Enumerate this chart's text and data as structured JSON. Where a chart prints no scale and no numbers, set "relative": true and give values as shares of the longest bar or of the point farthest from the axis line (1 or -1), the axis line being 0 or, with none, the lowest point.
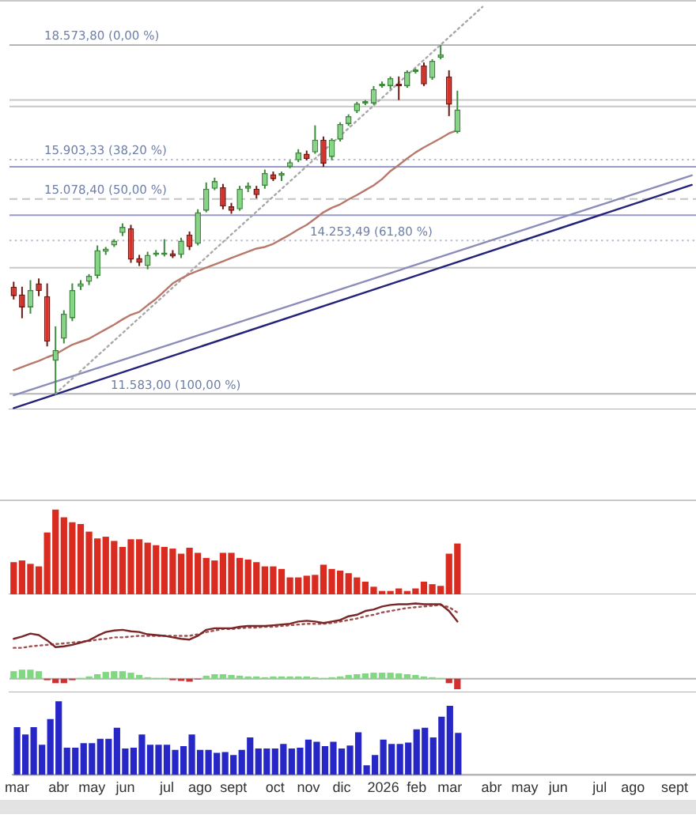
{
  "chart_data": [
    {
      "type": "candlestick",
      "categories": [
        null,
        null,
        null,
        null,
        null,
        null,
        null,
        null,
        null,
        null,
        null,
        null,
        null,
        null,
        null,
        null,
        null,
        null,
        null,
        null,
        null,
        null,
        null,
        null,
        null,
        null,
        null,
        null,
        null,
        null,
        null,
        null,
        null,
        null,
        null,
        null,
        null,
        null,
        null,
        null,
        null,
        null,
        null,
        null,
        null,
        null,
        null,
        null,
        null,
        null,
        null,
        null,
        null,
        null,
        null,
        null,
        null,
        null,
        null,
        null,
        null,
        null,
        null,
        null,
        null,
        null,
        null,
        null,
        null,
        null,
        null,
        null,
        null,
        null,
        null,
        null,
        null,
        null,
        null,
        null,
        null,
        null
      ],
      "ohlc": [
        [
          13390,
          13480,
          13160,
          13220
        ],
        [
          13250,
          13390,
          12830,
          13020
        ],
        [
          13020,
          13510,
          12910,
          13330
        ],
        [
          13450,
          13540,
          13220,
          13310
        ],
        [
          13220,
          13450,
          12350,
          12430
        ],
        [
          12110,
          12690,
          11583,
          12290
        ],
        [
          12480,
          12970,
          12400,
          12910
        ],
        [
          12830,
          13450,
          12780,
          13330
        ],
        [
          13390,
          13510,
          13330,
          13450
        ],
        [
          13480,
          13620,
          13420,
          13590
        ],
        [
          13590,
          14160,
          13540,
          14070
        ],
        [
          14040,
          14130,
          13980,
          14100
        ],
        [
          14160,
          14280,
          14130,
          14250
        ],
        [
          14400,
          14590,
          14340,
          14520
        ],
        [
          14490,
          14560,
          13830,
          13890
        ],
        [
          13920,
          13980,
          13770,
          13830
        ],
        [
          13770,
          14040,
          13710,
          13980
        ],
        [
          13980,
          14070,
          13950,
          14010
        ],
        [
          13980,
          14280,
          13950,
          14010
        ],
        [
          14010,
          14070,
          13920,
          13950
        ],
        [
          13980,
          14310,
          13920,
          14250
        ],
        [
          14370,
          14430,
          14070,
          14130
        ],
        [
          14190,
          14870,
          14160,
          14810
        ],
        [
          14840,
          15420,
          14810,
          15290
        ],
        [
          15290,
          15520,
          15260,
          15450
        ],
        [
          15320,
          15390,
          14870,
          14930
        ],
        [
          14930,
          15000,
          14780,
          14840
        ],
        [
          14870,
          15350,
          14840,
          15290
        ],
        [
          15290,
          15420,
          15220,
          15350
        ],
        [
          15290,
          15350,
          15090,
          15160
        ],
        [
          15350,
          15690,
          15290,
          15620
        ],
        [
          15590,
          15650,
          15450,
          15490
        ],
        [
          15560,
          15650,
          15450,
          15620
        ],
        [
          15750,
          15890,
          15720,
          15850
        ],
        [
          15890,
          16130,
          15850,
          16060
        ],
        [
          16030,
          16100,
          15890,
          15920
        ],
        [
          16060,
          16660,
          16030,
          16340
        ],
        [
          16340,
          16410,
          15750,
          15820
        ],
        [
          15960,
          16370,
          15890,
          16340
        ],
        [
          16340,
          16730,
          16300,
          16690
        ],
        [
          16690,
          16910,
          16650,
          16870
        ],
        [
          16980,
          17200,
          16940,
          17160
        ],
        [
          17160,
          17240,
          17120,
          17200
        ],
        [
          17160,
          17570,
          17130,
          17500
        ],
        [
          17570,
          17680,
          17530,
          17610
        ],
        [
          17570,
          17800,
          17500,
          17760
        ],
        [
          17610,
          17800,
          17240,
          17570
        ],
        [
          17570,
          17950,
          17530,
          17910
        ],
        [
          17910,
          17990,
          17870,
          17950
        ],
        [
          18070,
          18140,
          17570,
          17610
        ],
        [
          17760,
          18220,
          17720,
          18180
        ],
        [
          18260,
          18573.8,
          18220,
          18340
        ],
        [
          17800,
          17950,
          16870,
          17130
        ],
        [
          16510,
          17460,
          16480,
          17020
        ],
        null,
        null,
        null,
        null,
        null,
        null,
        null,
        null,
        null,
        null,
        null,
        null,
        null,
        null,
        null,
        null,
        null,
        null,
        null,
        null,
        null,
        null,
        null,
        null,
        null,
        null,
        null,
        null
      ],
      "ylim": [
        11340,
        19700
      ],
      "log": true,
      "tick_labels": false,
      "series": [
        {
          "type": "line",
          "color": "#b8786a",
          "values": [
            11960,
            12010,
            12060,
            12110,
            12170,
            12220,
            12300,
            12380,
            12430,
            12480,
            12560,
            12640,
            12720,
            12810,
            12890,
            12940,
            13060,
            13170,
            13310,
            13450,
            13540,
            13620,
            13680,
            13740,
            13800,
            13860,
            13920,
            13980,
            14040,
            14100,
            14130,
            14190,
            14280,
            14370,
            14470,
            14560,
            14680,
            14810,
            14900,
            14970,
            15070,
            15160,
            15260,
            15360,
            15490,
            15660,
            15790,
            15930,
            16060,
            16170,
            16270,
            16370,
            16480,
            16550,
            null,
            null,
            null,
            null,
            null,
            null,
            null,
            null,
            null,
            null,
            null,
            null,
            null,
            null,
            null,
            null,
            null,
            null,
            null,
            null,
            null,
            null,
            null,
            null,
            null,
            null,
            null,
            null
          ]
        },
        {
          "type": "line",
          "color": "#a8a8a8",
          "line_style": "dotted",
          "values": [
            null,
            null,
            null,
            null,
            null,
            11583,
            null,
            null,
            null,
            null,
            null,
            null,
            null,
            null,
            null,
            null,
            null,
            null,
            null,
            null,
            null,
            null,
            null,
            null,
            null,
            null,
            null,
            null,
            null,
            null,
            null,
            null,
            null,
            null,
            null,
            null,
            null,
            null,
            null,
            null,
            null,
            null,
            null,
            null,
            null,
            null,
            null,
            null,
            null,
            null,
            null,
            null,
            null,
            null,
            null,
            null,
            19560,
            null,
            null,
            null,
            null,
            null,
            null,
            null,
            null,
            null,
            null,
            null,
            null,
            null,
            null,
            null,
            null,
            null,
            null,
            null,
            null,
            null,
            null,
            null,
            null,
            null
          ]
        },
        {
          "type": "line",
          "color": "#23237a",
          "values": [
            11360,
            null,
            null,
            null,
            null,
            null,
            null,
            null,
            null,
            null,
            null,
            null,
            null,
            null,
            null,
            null,
            null,
            null,
            null,
            null,
            null,
            null,
            null,
            null,
            null,
            null,
            null,
            null,
            null,
            null,
            null,
            null,
            null,
            null,
            null,
            null,
            null,
            null,
            null,
            null,
            null,
            null,
            null,
            null,
            null,
            null,
            null,
            null,
            null,
            null,
            null,
            null,
            null,
            null,
            null,
            null,
            null,
            null,
            null,
            null,
            null,
            null,
            null,
            null,
            null,
            null,
            null,
            null,
            null,
            null,
            null,
            null,
            null,
            null,
            null,
            null,
            null,
            null,
            null,
            null,
            null,
            15370
          ]
        },
        {
          "type": "line",
          "color": "#8c8cb8",
          "values": [
            11560,
            null,
            null,
            null,
            null,
            null,
            null,
            null,
            null,
            null,
            null,
            null,
            null,
            null,
            null,
            null,
            null,
            null,
            null,
            null,
            null,
            null,
            null,
            null,
            null,
            null,
            null,
            null,
            null,
            null,
            null,
            null,
            null,
            null,
            null,
            null,
            null,
            null,
            null,
            null,
            null,
            null,
            null,
            null,
            null,
            null,
            null,
            null,
            null,
            null,
            null,
            null,
            null,
            null,
            null,
            null,
            null,
            null,
            null,
            null,
            null,
            null,
            null,
            null,
            null,
            null,
            null,
            null,
            null,
            null,
            null,
            null,
            null,
            null,
            null,
            null,
            null,
            null,
            null,
            null,
            null,
            15570
          ]
        }
      ],
      "ref_lines": [
        {
          "axis": "y",
          "value": 18573.8,
          "label": "18.573,80 (0,00 %)",
          "color": "#b4b4b4",
          "line_style": "solid"
        },
        {
          "axis": "y",
          "value": 17240,
          "color": "#c8c8c8",
          "line_style": "solid"
        },
        {
          "axis": "y",
          "value": 17090,
          "color": "#c8c8c8",
          "line_style": "solid"
        },
        {
          "axis": "y",
          "value": 15903.33,
          "label": "15.903,33 (38,20 %)",
          "color": "#b8bccc",
          "line_style": "dotted"
        },
        {
          "axis": "y",
          "value": 15750,
          "color": "#9a9ac8",
          "line_style": "solid"
        },
        {
          "axis": "y",
          "value": 15078.4,
          "label": "15.078,40 (50,00 %)",
          "color": "#c4c4c4",
          "line_style": "dashed"
        },
        {
          "axis": "y",
          "value": 14750,
          "color": "#9a9ac8",
          "line_style": "solid"
        },
        {
          "axis": "y",
          "value": 14253.49,
          "label": "14.253,49 (61,80 %)",
          "color": "#b8bccc",
          "line_style": "dotted"
        },
        {
          "axis": "y",
          "value": 13740,
          "color": "#c8c8c8",
          "line_style": "solid"
        },
        {
          "axis": "y",
          "value": 11583,
          "label": "11.583,00 (100,00 %)",
          "color": "#b4b4b4",
          "line_style": "solid"
        }
      ]
    },
    {
      "type": "bar",
      "relative": true,
      "tick_labels": false,
      "categories": [
        null,
        null,
        null,
        null,
        null,
        null,
        null,
        null,
        null,
        null,
        null,
        null,
        null,
        null,
        null,
        null,
        null,
        null,
        null,
        null,
        null,
        null,
        null,
        null,
        null,
        null,
        null,
        null,
        null,
        null,
        null,
        null,
        null,
        null,
        null,
        null,
        null,
        null,
        null,
        null,
        null,
        null,
        null,
        null,
        null,
        null,
        null,
        null,
        null,
        null,
        null,
        null,
        null,
        null,
        null,
        null,
        null,
        null,
        null,
        null,
        null,
        null,
        null,
        null,
        null,
        null,
        null,
        null,
        null,
        null,
        null,
        null,
        null,
        null,
        null,
        null,
        null,
        null,
        null,
        null,
        null,
        null
      ],
      "color": "#d92b20",
      "values": [
        0.38,
        0.4,
        0.36,
        0.33,
        0.73,
        1,
        0.91,
        0.85,
        0.83,
        0.74,
        0.66,
        0.68,
        0.63,
        0.56,
        0.65,
        0.65,
        0.61,
        0.58,
        0.56,
        0.54,
        0.48,
        0.55,
        0.49,
        0.43,
        0.4,
        0.49,
        0.49,
        0.43,
        0.41,
        0.38,
        0.33,
        0.33,
        0.3,
        0.2,
        0.2,
        0.22,
        0.23,
        0.35,
        0.3,
        0.28,
        0.25,
        0.2,
        0.15,
        0.09,
        0.04,
        0.04,
        0.07,
        0.04,
        0.07,
        0.15,
        0.12,
        0.1,
        0.48,
        0.6,
        null,
        null,
        null,
        null,
        null,
        null,
        null,
        null,
        null,
        null,
        null,
        null,
        null,
        null,
        null,
        null,
        null,
        null,
        null,
        null,
        null,
        null,
        null,
        null,
        null,
        null,
        null,
        null
      ]
    },
    {
      "type": "line",
      "relative": true,
      "tick_labels": false,
      "categories": [
        null,
        null,
        null,
        null,
        null,
        null,
        null,
        null,
        null,
        null,
        null,
        null,
        null,
        null,
        null,
        null,
        null,
        null,
        null,
        null,
        null,
        null,
        null,
        null,
        null,
        null,
        null,
        null,
        null,
        null,
        null,
        null,
        null,
        null,
        null,
        null,
        null,
        null,
        null,
        null,
        null,
        null,
        null,
        null,
        null,
        null,
        null,
        null,
        null,
        null,
        null,
        null,
        null,
        null,
        null,
        null,
        null,
        null,
        null,
        null,
        null,
        null,
        null,
        null,
        null,
        null,
        null,
        null,
        null,
        null,
        null,
        null,
        null,
        null,
        null,
        null,
        null,
        null,
        null,
        null,
        null,
        null
      ],
      "series": [
        {
          "type": "line",
          "color": "#7a2626",
          "values": [
            0.53,
            0.56,
            0.6,
            0.58,
            0.51,
            0.42,
            0.43,
            0.45,
            0.48,
            0.51,
            0.57,
            0.62,
            0.64,
            0.65,
            0.63,
            0.62,
            0.59,
            0.58,
            0.57,
            0.55,
            0.53,
            0.52,
            0.57,
            0.65,
            0.67,
            0.67,
            0.67,
            0.69,
            0.7,
            0.7,
            0.7,
            0.71,
            0.72,
            0.73,
            0.76,
            0.77,
            0.76,
            0.74,
            0.76,
            0.78,
            0.83,
            0.85,
            0.9,
            0.92,
            0.96,
            0.98,
            0.99,
            0.99,
            1,
            0.99,
            0.99,
            0.99,
            0.9,
            0.76,
            null,
            null,
            null,
            null,
            null,
            null,
            null,
            null,
            null,
            null,
            null,
            null,
            null,
            null,
            null,
            null,
            null,
            null,
            null,
            null,
            null,
            null,
            null,
            null,
            null,
            null,
            null,
            null
          ]
        },
        {
          "type": "line",
          "color": "#a05050",
          "line_style": "dotted",
          "values": [
            0.41,
            0.41,
            0.43,
            0.44,
            0.45,
            0.46,
            0.47,
            0.48,
            0.49,
            0.5,
            0.52,
            0.53,
            0.55,
            0.55,
            0.56,
            0.57,
            0.57,
            0.57,
            0.57,
            0.57,
            0.57,
            0.57,
            0.59,
            0.62,
            0.64,
            0.66,
            0.66,
            0.67,
            0.68,
            0.68,
            0.69,
            0.69,
            0.7,
            0.71,
            0.72,
            0.73,
            0.73,
            0.73,
            0.74,
            0.76,
            0.78,
            0.8,
            0.83,
            0.85,
            0.88,
            0.9,
            0.92,
            0.94,
            0.95,
            0.96,
            0.97,
            0.98,
            0.95,
            0.88,
            null,
            null,
            null,
            null,
            null,
            null,
            null,
            null,
            null,
            null,
            null,
            null,
            null,
            null,
            null,
            null,
            null,
            null,
            null,
            null,
            null,
            null,
            null,
            null,
            null,
            null,
            null,
            null
          ]
        },
        {
          "type": "bar",
          "colors": [
            "#80d880",
            "#80d880",
            "#80d880",
            "#80d880",
            "#d03030",
            "#d03030",
            "#d03030",
            "#d03030",
            "#80d880",
            "#80d880",
            "#80d880",
            "#80d880",
            "#80d880",
            "#80d880",
            "#80d880",
            "#80d880",
            "#80d880",
            "#80d880",
            "#80d880",
            "#d03030",
            "#d03030",
            "#d03030",
            "#d03030",
            "#80d880",
            "#80d880",
            "#80d880",
            "#80d880",
            "#80d880",
            "#80d880",
            "#80d880",
            "#80d880",
            "#80d880",
            "#80d880",
            "#80d880",
            "#80d880",
            "#80d880",
            "#80d880",
            "#80d880",
            "#80d880",
            "#80d880",
            "#80d880",
            "#80d880",
            "#80d880",
            "#80d880",
            "#80d880",
            "#80d880",
            "#80d880",
            "#80d880",
            "#80d880",
            "#80d880",
            "#80d880",
            "#80d880",
            "#d03030",
            "#d03030",
            null,
            null,
            null,
            null,
            null,
            null,
            null,
            null,
            null,
            null,
            null,
            null,
            null,
            null,
            null,
            null,
            null,
            null,
            null,
            null,
            null,
            null,
            null,
            null,
            null,
            null,
            null,
            null
          ],
          "values": [
            0.1,
            0.12,
            0.12,
            0.1,
            -0.02,
            -0.06,
            -0.06,
            -0.02,
            0.01,
            0.03,
            0.06,
            0.09,
            0.1,
            0.1,
            0.08,
            0.05,
            0.02,
            0.01,
            0.01,
            -0.02,
            -0.03,
            -0.04,
            -0.01,
            0.04,
            0.06,
            0.06,
            0.05,
            0.04,
            0.03,
            0.03,
            0.02,
            0.03,
            0.03,
            0.03,
            0.03,
            0.03,
            0.02,
            0.01,
            0.02,
            0.03,
            0.05,
            0.06,
            0.07,
            0.08,
            0.08,
            0.08,
            0.07,
            0.06,
            0.05,
            0.03,
            0.02,
            0.01,
            -0.06,
            -0.14,
            null,
            null,
            null,
            null,
            null,
            null,
            null,
            null,
            null,
            null,
            null,
            null,
            null,
            null,
            null,
            null,
            null,
            null,
            null,
            null,
            null,
            null,
            null,
            null,
            null,
            null,
            null,
            null
          ]
        }
      ]
    },
    {
      "type": "bar",
      "relative": true,
      "tick_labels": "x",
      "categories": [
        "mar",
        null,
        null,
        null,
        null,
        "abr",
        null,
        null,
        null,
        "may",
        null,
        null,
        null,
        "jun",
        null,
        null,
        null,
        null,
        "jul",
        null,
        null,
        null,
        "ago",
        null,
        null,
        null,
        "sept",
        null,
        null,
        null,
        null,
        "oct",
        null,
        null,
        null,
        "nov",
        null,
        null,
        null,
        "dic",
        null,
        null,
        null,
        null,
        "2026",
        null,
        null,
        null,
        "feb",
        null,
        null,
        null,
        "mar",
        null,
        null,
        null,
        null,
        "abr",
        null,
        null,
        null,
        "may",
        null,
        null,
        null,
        "jun",
        null,
        null,
        null,
        null,
        "jul",
        null,
        null,
        null,
        "ago",
        null,
        null,
        null,
        null,
        "sept",
        null,
        null
      ],
      "color": "#2727c8",
      "values": [
        0.65,
        0.55,
        0.65,
        0.41,
        0.76,
        1,
        0.37,
        0.37,
        0.43,
        0.43,
        0.49,
        0.49,
        0.64,
        0.36,
        0.37,
        0.55,
        0.41,
        0.41,
        0.41,
        0.34,
        0.39,
        0.55,
        0.34,
        0.34,
        0.3,
        0.31,
        0.27,
        0.34,
        0.51,
        0.36,
        0.36,
        0.36,
        0.42,
        0.36,
        0.37,
        0.48,
        0.45,
        0.39,
        0.45,
        0.36,
        0.4,
        0.58,
        0.13,
        0.27,
        0.48,
        0.42,
        0.42,
        0.44,
        0.62,
        0.64,
        0.51,
        0.79,
        0.94,
        0.57,
        null,
        null,
        null,
        null,
        null,
        null,
        null,
        null,
        null,
        null,
        null,
        null,
        null,
        null,
        null,
        null,
        null,
        null,
        null,
        null,
        null,
        null,
        null,
        null,
        null,
        null,
        null,
        null
      ]
    }
  ]
}
